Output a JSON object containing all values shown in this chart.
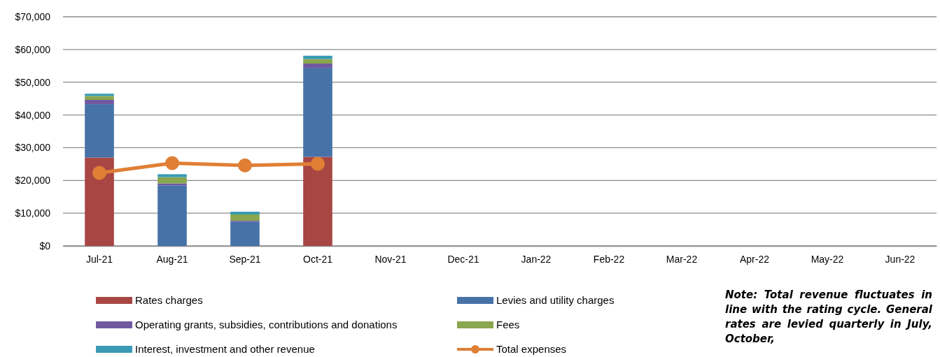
{
  "chart_data": {
    "type": "bar",
    "stacked": true,
    "categories": [
      "Jul-21",
      "Aug-21",
      "Sep-21",
      "Oct-21",
      "Nov-21",
      "Dec-21",
      "Jan-22",
      "Feb-22",
      "Mar-22",
      "Apr-22",
      "May-22",
      "Jun-22"
    ],
    "series": [
      {
        "name": "Rates charges",
        "color": "#a84644",
        "values": [
          27000,
          0,
          0,
          27200,
          null,
          null,
          null,
          null,
          null,
          null,
          null,
          null
        ]
      },
      {
        "name": "Levies and utility charges",
        "color": "#4672a8",
        "values": [
          16300,
          18500,
          7400,
          27200,
          null,
          null,
          null,
          null,
          null,
          null,
          null,
          null
        ]
      },
      {
        "name": "Operating grants, subsidies, contributions and donations",
        "color": "#7159a0",
        "values": [
          1300,
          600,
          300,
          1300,
          null,
          null,
          null,
          null,
          null,
          null,
          null,
          null
        ]
      },
      {
        "name": "Fees",
        "color": "#8aa64e",
        "values": [
          1200,
          1900,
          1900,
          1400,
          null,
          null,
          null,
          null,
          null,
          null,
          null,
          null
        ]
      },
      {
        "name": "Interest, investment and other revenue",
        "color": "#3a9ab5",
        "values": [
          700,
          900,
          850,
          1000,
          null,
          null,
          null,
          null,
          null,
          null,
          null,
          null
        ]
      },
      {
        "name": "Total expenses",
        "type": "line",
        "color": "#e07f35",
        "marker": "circle",
        "values": [
          22300,
          25300,
          24600,
          25100,
          null,
          null,
          null,
          null,
          null,
          null,
          null,
          null
        ]
      }
    ],
    "ylim": [
      0,
      70000
    ],
    "yticks": [
      {
        "value": 0,
        "label": "$0"
      },
      {
        "value": 10000,
        "label": "$10,000"
      },
      {
        "value": 20000,
        "label": "$20,000"
      },
      {
        "value": 30000,
        "label": "$30,000"
      },
      {
        "value": 40000,
        "label": "$40,000"
      },
      {
        "value": 50000,
        "label": "$50,000"
      },
      {
        "value": 60000,
        "label": "$60,000"
      },
      {
        "value": 70000,
        "label": "$70,000"
      }
    ],
    "grid": "y",
    "legend": "bottom",
    "annotations": [
      "Note: Total revenue fluctuates in line with the rating cycle. General rates are levied quarterly in July, October,"
    ]
  }
}
